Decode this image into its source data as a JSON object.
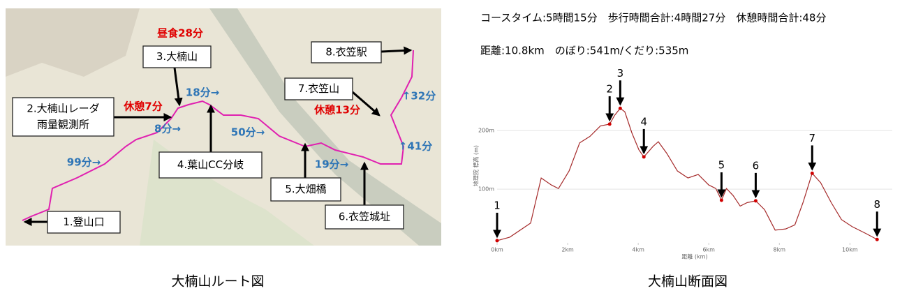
{
  "header": {
    "course_time": "コースタイム:5時間15分　歩行時間合計:4時間27分　休憩時間合計:48分",
    "distance": "距離:10.8km　のぼり:541m/くだり:535m"
  },
  "map": {
    "caption": "大楠山ルート図",
    "points": [
      {
        "lines": [
          "1.登山口"
        ]
      },
      {
        "lines": [
          "2.大楠山レーダ",
          "雨量観測所"
        ]
      },
      {
        "lines": [
          "3.大楠山"
        ]
      },
      {
        "lines": [
          "4.葉山CC分岐"
        ]
      },
      {
        "lines": [
          "5.大畑橋"
        ]
      },
      {
        "lines": [
          "6.衣笠城址"
        ]
      },
      {
        "lines": [
          "7.衣笠山"
        ]
      },
      {
        "lines": [
          "8.衣笠駅"
        ]
      }
    ],
    "times": [
      {
        "text": "昼食28分",
        "color": "#e00000"
      },
      {
        "text": "休憩7分",
        "color": "#e00000"
      },
      {
        "text": "8分→",
        "color": "#2e75b6"
      },
      {
        "text": "18分→",
        "color": "#2e75b6"
      },
      {
        "text": "99分→",
        "color": "#2e75b6"
      },
      {
        "text": "50分→",
        "color": "#2e75b6"
      },
      {
        "text": "19分→",
        "color": "#2e75b6"
      },
      {
        "text": "↑41分",
        "color": "#2e75b6"
      },
      {
        "text": "↑32分",
        "color": "#2e75b6"
      },
      {
        "text": "休憩13分",
        "color": "#e00000"
      }
    ]
  },
  "chart_data": {
    "type": "line",
    "caption": "大楠山断面図",
    "xlabel": "距離 (km)",
    "ylabel": "地理院 標高 (m)",
    "color": "#a52a2a",
    "x": [
      0,
      0.36,
      0.95,
      1.25,
      1.54,
      1.74,
      2.04,
      2.34,
      2.63,
      2.93,
      3.19,
      3.33,
      3.49,
      3.62,
      3.82,
      4.02,
      4.16,
      4.42,
      4.57,
      4.81,
      5.11,
      5.41,
      5.7,
      6.0,
      6.2,
      6.36,
      6.5,
      6.69,
      6.89,
      7.09,
      7.33,
      7.58,
      7.88,
      8.18,
      8.44,
      8.67,
      8.93,
      9.17,
      9.47,
      9.76,
      10.06,
      10.46,
      10.77
    ],
    "values": [
      12,
      18,
      42,
      119,
      107,
      101,
      131,
      179,
      190,
      208,
      211,
      226,
      238,
      232,
      196,
      167,
      155,
      173,
      181,
      161,
      131,
      119,
      125,
      107,
      101,
      81,
      101,
      89,
      71,
      77,
      80,
      65,
      30,
      32,
      39,
      77,
      127,
      111,
      77,
      48,
      36,
      24,
      14
    ],
    "xlim": [
      0,
      11.2
    ],
    "ylim": [
      0,
      280
    ],
    "xticks": [
      {
        "value": 0,
        "label": "0km"
      },
      {
        "value": 2,
        "label": "2km"
      },
      {
        "value": 4,
        "label": "4km"
      },
      {
        "value": 6,
        "label": "6km"
      },
      {
        "value": 8,
        "label": "8km"
      },
      {
        "value": 10,
        "label": "10km"
      }
    ],
    "yticks": [
      {
        "value": 100,
        "label": "100m"
      },
      {
        "value": 200,
        "label": "200m"
      }
    ],
    "grid": true,
    "annotations": [
      {
        "label": "1",
        "x": 0,
        "y": 12
      },
      {
        "label": "2",
        "x": 3.19,
        "y": 211
      },
      {
        "label": "3",
        "x": 3.49,
        "y": 238
      },
      {
        "label": "4",
        "x": 4.16,
        "y": 155
      },
      {
        "label": "5",
        "x": 6.36,
        "y": 81
      },
      {
        "label": "6",
        "x": 7.33,
        "y": 80
      },
      {
        "label": "7",
        "x": 8.93,
        "y": 127
      },
      {
        "label": "8",
        "x": 10.77,
        "y": 14
      }
    ]
  }
}
